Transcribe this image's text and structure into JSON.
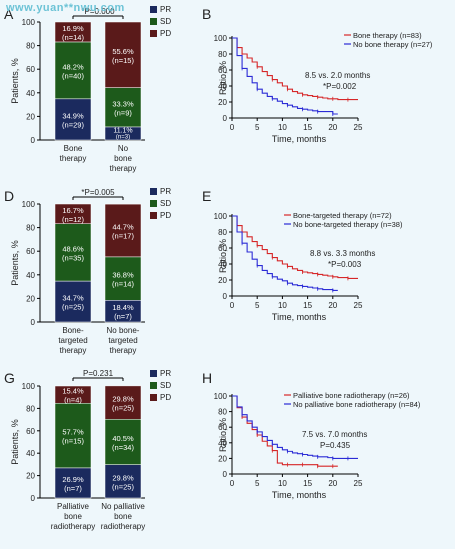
{
  "watermark": "www.yuan**nwu.com",
  "panels": [
    {
      "letter": "A",
      "type": "stacked-bar",
      "ylabel": "Patients, %",
      "pvalue": "*P=0.000",
      "legend": [
        {
          "name": "PR",
          "color": "#1b2a5e"
        },
        {
          "name": "SD",
          "color": "#1d5a1b"
        },
        {
          "name": "PD",
          "color": "#5a1a1a"
        }
      ],
      "bars": [
        {
          "name_lines": [
            "Bone",
            "therapy"
          ],
          "segments": [
            {
              "pct": "34.9%",
              "n": "(n=29)",
              "value": 34.9
            },
            {
              "pct": "48.2%",
              "n": "(n=40)",
              "value": 48.2
            },
            {
              "pct": "16.9%",
              "n": "(n=14)",
              "value": 16.9
            }
          ]
        },
        {
          "name_lines": [
            "No",
            "bone",
            "therapy"
          ],
          "segments": [
            {
              "pct": "11.1%",
              "n": "(n=3)",
              "value": 11.1
            },
            {
              "pct": "33.3%",
              "n": "(n=9)",
              "value": 33.3
            },
            {
              "pct": "55.6%",
              "n": "(n=15)",
              "value": 55.6
            }
          ]
        }
      ]
    },
    {
      "letter": "D",
      "type": "stacked-bar",
      "ylabel": "Patients, %",
      "pvalue": "*P=0.005",
      "legend": [
        {
          "name": "PR",
          "color": "#1b2a5e"
        },
        {
          "name": "SD",
          "color": "#1d5a1b"
        },
        {
          "name": "PD",
          "color": "#5a1a1a"
        }
      ],
      "bars": [
        {
          "name_lines": [
            "Bone-",
            "targeted",
            "therapy"
          ],
          "segments": [
            {
              "pct": "34.7%",
              "n": "(n=25)",
              "value": 34.7
            },
            {
              "pct": "48.6%",
              "n": "(n=35)",
              "value": 48.6
            },
            {
              "pct": "16.7%",
              "n": "(n=12)",
              "value": 16.7
            }
          ]
        },
        {
          "name_lines": [
            "No bone-",
            "targeted",
            "therapy"
          ],
          "segments": [
            {
              "pct": "18.4%",
              "n": "(n=7)",
              "value": 18.4
            },
            {
              "pct": "36.8%",
              "n": "(n=14)",
              "value": 36.8
            },
            {
              "pct": "44.7%",
              "n": "(n=17)",
              "value": 44.7
            }
          ]
        }
      ]
    },
    {
      "letter": "G",
      "type": "stacked-bar",
      "ylabel": "Patients, %",
      "pvalue": "P=0.231",
      "legend": [
        {
          "name": "PR",
          "color": "#1b2a5e"
        },
        {
          "name": "SD",
          "color": "#1d5a1b"
        },
        {
          "name": "PD",
          "color": "#5a1a1a"
        }
      ],
      "bars": [
        {
          "name_lines": [
            "Palliative",
            "bone",
            "radiotherapy"
          ],
          "segments": [
            {
              "pct": "26.9%",
              "n": "(n=7)",
              "value": 26.9
            },
            {
              "pct": "57.7%",
              "n": "(n=15)",
              "value": 57.7
            },
            {
              "pct": "15.4%",
              "n": "(n=4)",
              "value": 15.4
            }
          ]
        },
        {
          "name_lines": [
            "No palliative",
            "bone",
            "radiotherapy"
          ],
          "segments": [
            {
              "pct": "29.8%",
              "n": "(n=25)",
              "value": 29.8
            },
            {
              "pct": "40.5%",
              "n": "(n=34)",
              "value": 40.5
            },
            {
              "pct": "29.8%",
              "n": "(n=25)",
              "value": 29.8
            }
          ]
        }
      ]
    },
    {
      "letter": "B",
      "type": "km",
      "ylabel": "Ratio, %",
      "xlabel": "Time, months",
      "legend": [
        {
          "name": "Bone therapy (n=83)",
          "color": "#d62728"
        },
        {
          "name": "No bone therapy (n=27)",
          "color": "#2b2bd6"
        }
      ],
      "annot1": "8.5 vs. 2.0 months",
      "annot2": "*P=0.002",
      "series": [
        {
          "color": "#d62728",
          "t": [
            0,
            1,
            2,
            3,
            4,
            5,
            6,
            7,
            8,
            9,
            10,
            11,
            12,
            13,
            14,
            15,
            16,
            17,
            18,
            19,
            20,
            21,
            22,
            23,
            24,
            25
          ],
          "y": [
            100,
            88,
            80,
            75,
            70,
            64,
            58,
            53,
            48,
            44,
            40,
            36,
            33,
            31,
            29,
            28,
            27,
            26,
            25,
            24,
            24,
            23,
            23,
            23,
            23,
            23
          ]
        },
        {
          "color": "#2b2bd6",
          "t": [
            0,
            1,
            2,
            3,
            4,
            5,
            6,
            7,
            8,
            9,
            10,
            11,
            12,
            13,
            14,
            15,
            16,
            17,
            18,
            19,
            20,
            21
          ],
          "y": [
            100,
            78,
            62,
            52,
            44,
            36,
            31,
            27,
            24,
            21,
            18,
            16,
            14,
            12,
            11,
            10,
            9,
            8,
            8,
            8,
            5,
            5
          ]
        }
      ]
    },
    {
      "letter": "E",
      "type": "km",
      "ylabel": "Ratio, %",
      "xlabel": "Time, months",
      "legend": [
        {
          "name": "Bone-targeted therapy (n=72)",
          "color": "#d62728"
        },
        {
          "name": "No bone-targeted therapy (n=38)",
          "color": "#2b2bd6"
        }
      ],
      "annot1": "8.8 vs. 3.3 months",
      "annot2": "*P=0.003",
      "series": [
        {
          "color": "#d62728",
          "t": [
            0,
            1,
            2,
            3,
            4,
            5,
            6,
            7,
            8,
            9,
            10,
            11,
            12,
            13,
            14,
            15,
            16,
            17,
            18,
            19,
            20,
            21,
            22,
            23,
            24,
            25
          ],
          "y": [
            100,
            88,
            80,
            74,
            68,
            63,
            58,
            53,
            48,
            44,
            40,
            37,
            34,
            32,
            30,
            29,
            28,
            27,
            26,
            25,
            24,
            23,
            23,
            22,
            22,
            22
          ]
        },
        {
          "color": "#2b2bd6",
          "t": [
            0,
            1,
            2,
            3,
            4,
            5,
            6,
            7,
            8,
            9,
            10,
            11,
            12,
            13,
            14,
            15,
            16,
            17,
            18,
            19,
            20,
            21
          ],
          "y": [
            100,
            80,
            66,
            55,
            46,
            38,
            32,
            28,
            24,
            21,
            19,
            16,
            14,
            13,
            12,
            11,
            10,
            9,
            8,
            8,
            7,
            7
          ]
        }
      ]
    },
    {
      "letter": "H",
      "type": "km",
      "ylabel": "Ratio, %",
      "xlabel": "Time, months",
      "legend": [
        {
          "name": "Palliative bone radiotherapy (n=26)",
          "color": "#d62728"
        },
        {
          "name": "No palliative bone radiotherapy (n=84)",
          "color": "#2b2bd6"
        }
      ],
      "annot1": "7.5 vs. 7.0 months",
      "annot2": "P=0.435",
      "series": [
        {
          "color": "#d62728",
          "t": [
            0,
            1,
            2,
            3,
            4,
            5,
            6,
            7,
            8,
            9,
            10,
            11,
            12,
            13,
            14,
            15,
            16,
            17,
            18,
            19,
            20,
            21
          ],
          "y": [
            100,
            85,
            73,
            65,
            57,
            50,
            42,
            36,
            30,
            14,
            12,
            12,
            12,
            12,
            12,
            12,
            12,
            10,
            10,
            10,
            10,
            10
          ]
        },
        {
          "color": "#2b2bd6",
          "t": [
            0,
            1,
            2,
            3,
            4,
            5,
            6,
            7,
            8,
            9,
            10,
            11,
            12,
            13,
            14,
            15,
            16,
            17,
            18,
            19,
            20,
            21,
            22,
            23,
            24,
            25
          ],
          "y": [
            100,
            86,
            76,
            68,
            60,
            54,
            48,
            43,
            38,
            34,
            31,
            29,
            27,
            26,
            25,
            24,
            23,
            22,
            22,
            21,
            20,
            20,
            20,
            20,
            20,
            20
          ]
        }
      ]
    }
  ],
  "chart_data": [
    {
      "type": "bar",
      "stacked": true,
      "categories": [
        "Bone therapy",
        "No bone therapy"
      ],
      "series": [
        {
          "name": "PR",
          "values": [
            34.9,
            11.1
          ]
        },
        {
          "name": "SD",
          "values": [
            48.2,
            33.3
          ]
        },
        {
          "name": "PD",
          "values": [
            16.9,
            55.6
          ]
        }
      ],
      "ylabel": "Patients, %",
      "ylim": [
        0,
        100
      ]
    },
    {
      "type": "bar",
      "stacked": true,
      "categories": [
        "Bone-targeted therapy",
        "No bone-targeted therapy"
      ],
      "series": [
        {
          "name": "PR",
          "values": [
            34.7,
            18.4
          ]
        },
        {
          "name": "SD",
          "values": [
            48.6,
            36.8
          ]
        },
        {
          "name": "PD",
          "values": [
            16.7,
            44.7
          ]
        }
      ],
      "ylabel": "Patients, %",
      "ylim": [
        0,
        100
      ]
    },
    {
      "type": "bar",
      "stacked": true,
      "categories": [
        "Palliative bone radiotherapy",
        "No palliative bone radiotherapy"
      ],
      "series": [
        {
          "name": "PR",
          "values": [
            26.9,
            29.8
          ]
        },
        {
          "name": "SD",
          "values": [
            57.7,
            40.5
          ]
        },
        {
          "name": "PD",
          "values": [
            15.4,
            29.8
          ]
        }
      ],
      "ylabel": "Patients, %",
      "ylim": [
        0,
        100
      ]
    },
    {
      "type": "line",
      "xlabel": "Time, months",
      "ylabel": "Ratio, %",
      "xlim": [
        0,
        25
      ],
      "ylim": [
        0,
        100
      ],
      "series": [
        {
          "name": "Bone therapy (n=83)"
        },
        {
          "name": "No bone therapy (n=27)"
        }
      ]
    },
    {
      "type": "line",
      "xlabel": "Time, months",
      "ylabel": "Ratio, %",
      "xlim": [
        0,
        25
      ],
      "ylim": [
        0,
        100
      ],
      "series": [
        {
          "name": "Bone-targeted therapy (n=72)"
        },
        {
          "name": "No bone-targeted therapy (n=38)"
        }
      ]
    },
    {
      "type": "line",
      "xlabel": "Time, months",
      "ylabel": "Ratio, %",
      "xlim": [
        0,
        25
      ],
      "ylim": [
        0,
        100
      ],
      "series": [
        {
          "name": "Palliative bone radiotherapy (n=26)"
        },
        {
          "name": "No palliative bone radiotherapy (n=84)"
        }
      ]
    }
  ]
}
